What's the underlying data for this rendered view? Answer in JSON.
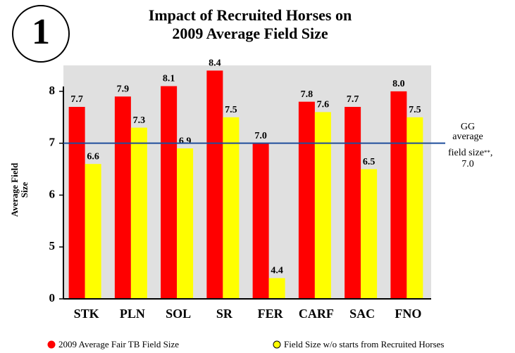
{
  "chart_data": {
    "type": "bar",
    "badge": "1",
    "title": [
      "Impact of Recruited Horses on",
      "2009 Average Field Size"
    ],
    "y_label": [
      "Average Field",
      "Size"
    ],
    "categories": [
      "STK",
      "PLN",
      "SOL",
      "SR",
      "FER",
      "CARF",
      "SAC",
      "FNO"
    ],
    "series": [
      {
        "name": "2009 Average Fair TB Field Size",
        "color": "#ff0000",
        "values": [
          7.7,
          7.9,
          8.1,
          8.4,
          7.0,
          7.8,
          7.7,
          8.0
        ],
        "value_labels": [
          "7.7",
          "7.9",
          "8.1",
          "8.4",
          "7.0",
          "7.8",
          "7.7",
          "8.0"
        ]
      },
      {
        "name": "Field Size w/o starts from Recruited Horses",
        "color": "#ffff00",
        "values": [
          6.6,
          7.3,
          6.9,
          7.5,
          4.4,
          7.6,
          6.5,
          7.5
        ],
        "value_labels": [
          "6.6",
          "7.3",
          "6.9",
          "7.5",
          "4.4",
          "7.6",
          "6.5",
          "7.5"
        ]
      }
    ],
    "ylim": [
      0,
      8.5
    ],
    "axis_break": [
      0,
      4
    ],
    "yticks": [
      0,
      5,
      6,
      7,
      8
    ],
    "reference_line": {
      "value": 7,
      "color": "#1f4e9c",
      "label": [
        "GG",
        "average",
        "field size",
        "**",
        ",",
        "7.0"
      ]
    },
    "background": "#e0e0e0"
  }
}
